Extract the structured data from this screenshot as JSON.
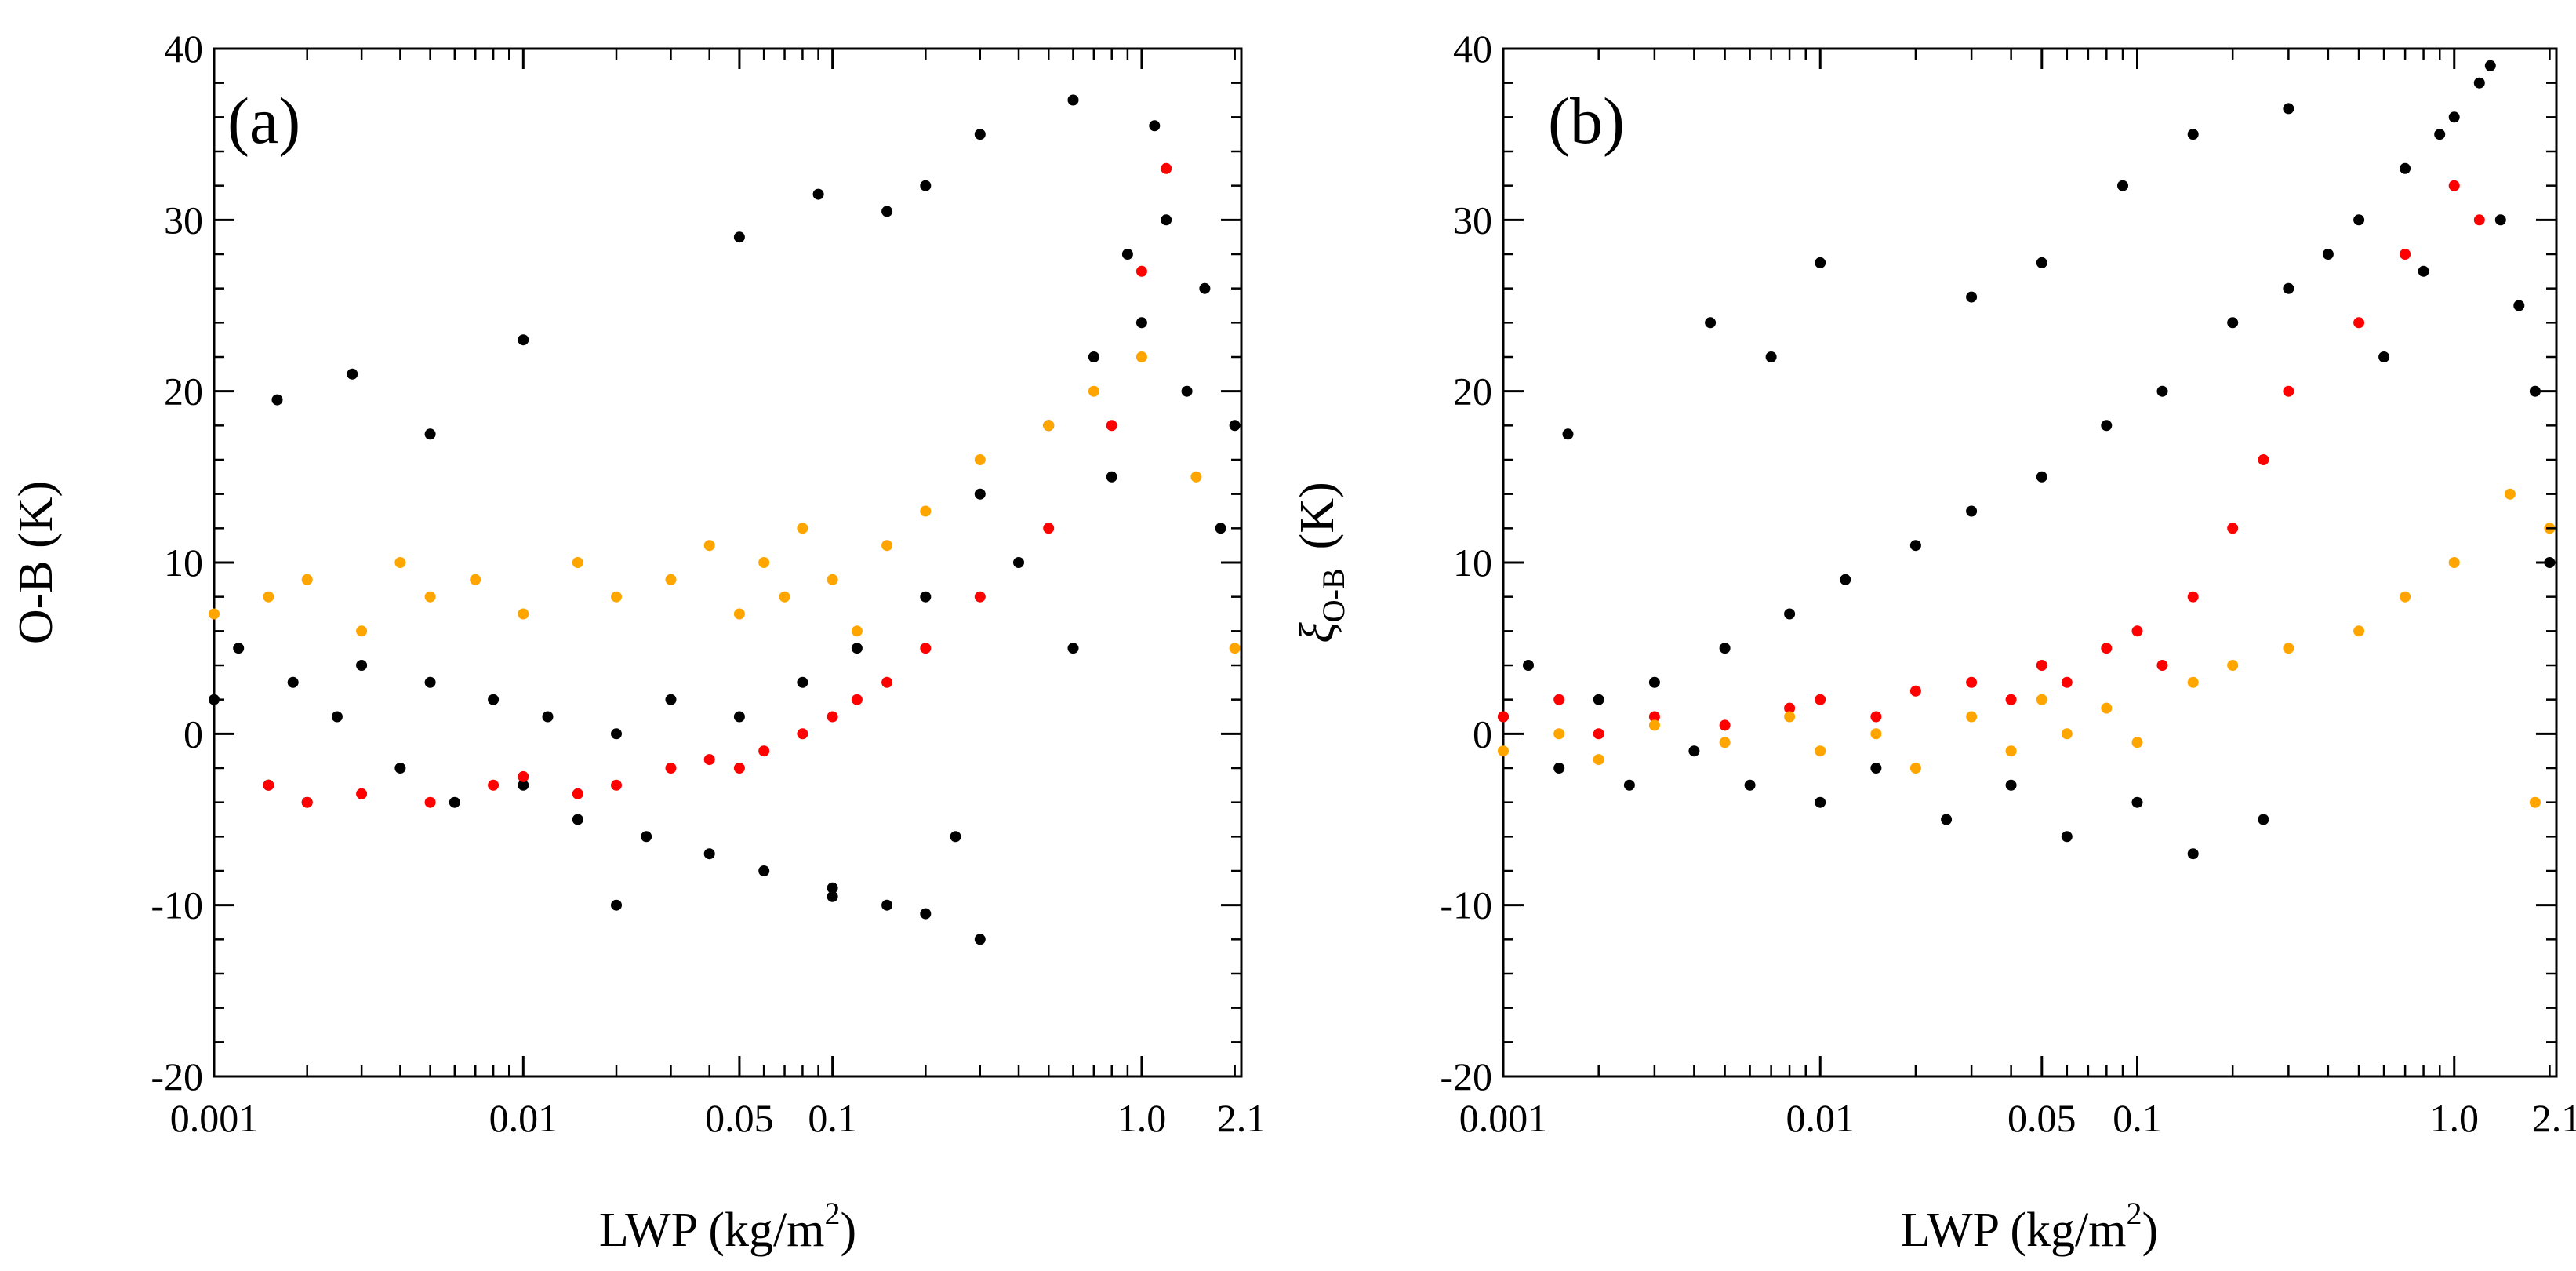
{
  "chart_data": [
    {
      "type": "scatter",
      "panel_label": "(a)",
      "xscale": "log",
      "xlim": [
        0.001,
        2.1
      ],
      "ylim": [
        -20,
        40
      ],
      "xlabel": "LWP (kg/m",
      "xlabel_sup": "2",
      "xlabel_close": ")",
      "ylabel": "O-B (K)",
      "xticks": [
        {
          "value": 0.001,
          "label": "0.001"
        },
        {
          "value": 0.01,
          "label": "0.01"
        },
        {
          "value": 0.05,
          "label": "0.05"
        },
        {
          "value": 0.1,
          "label": "0.1"
        },
        {
          "value": 1.0,
          "label": "1.0"
        },
        {
          "value": 2.1,
          "label": "2.1"
        }
      ],
      "yticks": [
        {
          "value": -20,
          "label": "-20"
        },
        {
          "value": -10,
          "label": "-10"
        },
        {
          "value": 0,
          "label": "0"
        },
        {
          "value": 10,
          "label": "10"
        },
        {
          "value": 20,
          "label": "20"
        },
        {
          "value": 30,
          "label": "30"
        },
        {
          "value": 40,
          "label": "40"
        }
      ],
      "series": [
        {
          "name": "black",
          "color": "#000000",
          "points": [
            [
              0.001,
              2
            ],
            [
              0.0012,
              5
            ],
            [
              0.0015,
              -3
            ],
            [
              0.0018,
              3
            ],
            [
              0.002,
              -4
            ],
            [
              0.0025,
              1
            ],
            [
              0.003,
              4
            ],
            [
              0.004,
              -2
            ],
            [
              0.005,
              3
            ],
            [
              0.006,
              -4
            ],
            [
              0.008,
              2
            ],
            [
              0.01,
              -3
            ],
            [
              0.012,
              1
            ],
            [
              0.015,
              -5
            ],
            [
              0.02,
              0
            ],
            [
              0.025,
              -6
            ],
            [
              0.03,
              2
            ],
            [
              0.04,
              -7
            ],
            [
              0.05,
              1
            ],
            [
              0.06,
              -8
            ],
            [
              0.08,
              3
            ],
            [
              0.1,
              -9
            ],
            [
              0.12,
              5
            ],
            [
              0.15,
              -10
            ],
            [
              0.2,
              8
            ],
            [
              0.25,
              -6
            ],
            [
              0.3,
              14
            ],
            [
              0.4,
              10
            ],
            [
              0.5,
              18
            ],
            [
              0.6,
              5
            ],
            [
              0.7,
              22
            ],
            [
              0.8,
              15
            ],
            [
              0.9,
              28
            ],
            [
              1.0,
              24
            ],
            [
              1.2,
              30
            ],
            [
              1.4,
              20
            ],
            [
              1.6,
              26
            ],
            [
              1.8,
              12
            ],
            [
              2.0,
              18
            ],
            [
              0.0016,
              19.5
            ],
            [
              0.0028,
              21
            ],
            [
              0.005,
              17.5
            ],
            [
              0.01,
              23
            ],
            [
              0.05,
              29
            ],
            [
              0.09,
              31.5
            ],
            [
              0.15,
              30.5
            ],
            [
              0.2,
              32
            ],
            [
              0.3,
              35
            ],
            [
              0.6,
              37
            ],
            [
              1.1,
              35.5
            ],
            [
              0.02,
              -10
            ],
            [
              0.1,
              -9.5
            ],
            [
              0.2,
              -10.5
            ],
            [
              0.3,
              -12
            ]
          ]
        },
        {
          "name": "orange",
          "color": "#FFA500",
          "points": [
            [
              0.001,
              7
            ],
            [
              0.0015,
              8
            ],
            [
              0.002,
              9
            ],
            [
              0.003,
              6
            ],
            [
              0.004,
              10
            ],
            [
              0.005,
              8
            ],
            [
              0.007,
              9
            ],
            [
              0.01,
              7
            ],
            [
              0.015,
              10
            ],
            [
              0.02,
              8
            ],
            [
              0.03,
              9
            ],
            [
              0.04,
              11
            ],
            [
              0.05,
              7
            ],
            [
              0.06,
              10
            ],
            [
              0.07,
              8
            ],
            [
              0.08,
              12
            ],
            [
              0.1,
              9
            ],
            [
              0.12,
              6
            ],
            [
              0.15,
              11
            ],
            [
              0.2,
              13
            ],
            [
              0.3,
              16
            ],
            [
              0.5,
              18
            ],
            [
              0.7,
              20
            ],
            [
              1.0,
              22
            ],
            [
              1.5,
              15
            ],
            [
              2.0,
              5
            ]
          ]
        },
        {
          "name": "red",
          "color": "#FF0000",
          "points": [
            [
              0.0015,
              -3
            ],
            [
              0.002,
              -4
            ],
            [
              0.003,
              -3.5
            ],
            [
              0.005,
              -4
            ],
            [
              0.008,
              -3
            ],
            [
              0.01,
              -2.5
            ],
            [
              0.015,
              -3.5
            ],
            [
              0.02,
              -3
            ],
            [
              0.03,
              -2
            ],
            [
              0.04,
              -1.5
            ],
            [
              0.05,
              -2
            ],
            [
              0.06,
              -1
            ],
            [
              0.08,
              0
            ],
            [
              0.1,
              1
            ],
            [
              0.12,
              2
            ],
            [
              0.15,
              3
            ],
            [
              0.2,
              5
            ],
            [
              0.3,
              8
            ],
            [
              0.5,
              12
            ],
            [
              0.8,
              18
            ],
            [
              1.0,
              27
            ],
            [
              1.2,
              33
            ]
          ]
        }
      ]
    },
    {
      "type": "scatter",
      "panel_label": "(b)",
      "xscale": "log",
      "xlim": [
        0.001,
        2.1
      ],
      "ylim": [
        -20,
        40
      ],
      "xlabel": "LWP (kg/m",
      "xlabel_sup": "2",
      "xlabel_close": ")",
      "ylabel": "ξ",
      "ylabel_sub": "O-B",
      "ylabel_unit": "(K)",
      "xticks": [
        {
          "value": 0.001,
          "label": "0.001"
        },
        {
          "value": 0.01,
          "label": "0.01"
        },
        {
          "value": 0.05,
          "label": "0.05"
        },
        {
          "value": 0.1,
          "label": "0.1"
        },
        {
          "value": 1.0,
          "label": "1.0"
        },
        {
          "value": 2.1,
          "label": "2.1"
        }
      ],
      "yticks": [
        {
          "value": -20,
          "label": "-20"
        },
        {
          "value": -10,
          "label": "-10"
        },
        {
          "value": 0,
          "label": "0"
        },
        {
          "value": 10,
          "label": "10"
        },
        {
          "value": 20,
          "label": "20"
        },
        {
          "value": 30,
          "label": "30"
        },
        {
          "value": 40,
          "label": "40"
        }
      ],
      "series": [
        {
          "name": "black",
          "color": "#000000",
          "points": [
            [
              0.001,
              1
            ],
            [
              0.0012,
              4
            ],
            [
              0.0015,
              -2
            ],
            [
              0.002,
              2
            ],
            [
              0.0025,
              -3
            ],
            [
              0.003,
              3
            ],
            [
              0.004,
              -1
            ],
            [
              0.005,
              5
            ],
            [
              0.006,
              -3
            ],
            [
              0.008,
              7
            ],
            [
              0.01,
              -4
            ],
            [
              0.012,
              9
            ],
            [
              0.015,
              -2
            ],
            [
              0.02,
              11
            ],
            [
              0.025,
              -5
            ],
            [
              0.03,
              13
            ],
            [
              0.04,
              -3
            ],
            [
              0.05,
              15
            ],
            [
              0.06,
              -6
            ],
            [
              0.08,
              18
            ],
            [
              0.1,
              -4
            ],
            [
              0.12,
              20
            ],
            [
              0.15,
              -7
            ],
            [
              0.2,
              24
            ],
            [
              0.25,
              -5
            ],
            [
              0.3,
              26
            ],
            [
              0.4,
              28
            ],
            [
              0.5,
              30
            ],
            [
              0.6,
              22
            ],
            [
              0.7,
              33
            ],
            [
              0.8,
              27
            ],
            [
              0.9,
              35
            ],
            [
              1.0,
              36
            ],
            [
              1.2,
              38
            ],
            [
              1.4,
              30
            ],
            [
              1.6,
              25
            ],
            [
              1.8,
              20
            ],
            [
              2.0,
              10
            ],
            [
              0.0016,
              17.5
            ],
            [
              0.0045,
              24
            ],
            [
              0.007,
              22
            ],
            [
              0.01,
              27.5
            ],
            [
              0.03,
              25.5
            ],
            [
              0.05,
              27.5
            ],
            [
              0.09,
              32
            ],
            [
              0.15,
              35
            ],
            [
              0.3,
              36.5
            ],
            [
              1.3,
              39
            ]
          ]
        },
        {
          "name": "red",
          "color": "#FF0000",
          "points": [
            [
              0.001,
              1
            ],
            [
              0.0015,
              2
            ],
            [
              0.002,
              0
            ],
            [
              0.003,
              1
            ],
            [
              0.005,
              0.5
            ],
            [
              0.008,
              1.5
            ],
            [
              0.01,
              2
            ],
            [
              0.015,
              1
            ],
            [
              0.02,
              2.5
            ],
            [
              0.03,
              3
            ],
            [
              0.04,
              2
            ],
            [
              0.05,
              4
            ],
            [
              0.06,
              3
            ],
            [
              0.08,
              5
            ],
            [
              0.1,
              6
            ],
            [
              0.12,
              4
            ],
            [
              0.15,
              8
            ],
            [
              0.2,
              12
            ],
            [
              0.25,
              16
            ],
            [
              0.3,
              20
            ],
            [
              0.5,
              24
            ],
            [
              0.7,
              28
            ],
            [
              1.0,
              32
            ],
            [
              1.2,
              30
            ]
          ]
        },
        {
          "name": "orange",
          "color": "#FFA500",
          "points": [
            [
              0.001,
              -1
            ],
            [
              0.0015,
              0
            ],
            [
              0.002,
              -1.5
            ],
            [
              0.003,
              0.5
            ],
            [
              0.005,
              -0.5
            ],
            [
              0.008,
              1
            ],
            [
              0.01,
              -1
            ],
            [
              0.015,
              0
            ],
            [
              0.02,
              -2
            ],
            [
              0.03,
              1
            ],
            [
              0.04,
              -1
            ],
            [
              0.05,
              2
            ],
            [
              0.06,
              0
            ],
            [
              0.08,
              1.5
            ],
            [
              0.1,
              -0.5
            ],
            [
              0.15,
              3
            ],
            [
              0.2,
              4
            ],
            [
              0.3,
              5
            ],
            [
              0.5,
              6
            ],
            [
              0.7,
              8
            ],
            [
              1.0,
              10
            ],
            [
              1.5,
              14
            ],
            [
              2.0,
              12
            ],
            [
              1.8,
              -4
            ]
          ]
        }
      ]
    }
  ]
}
